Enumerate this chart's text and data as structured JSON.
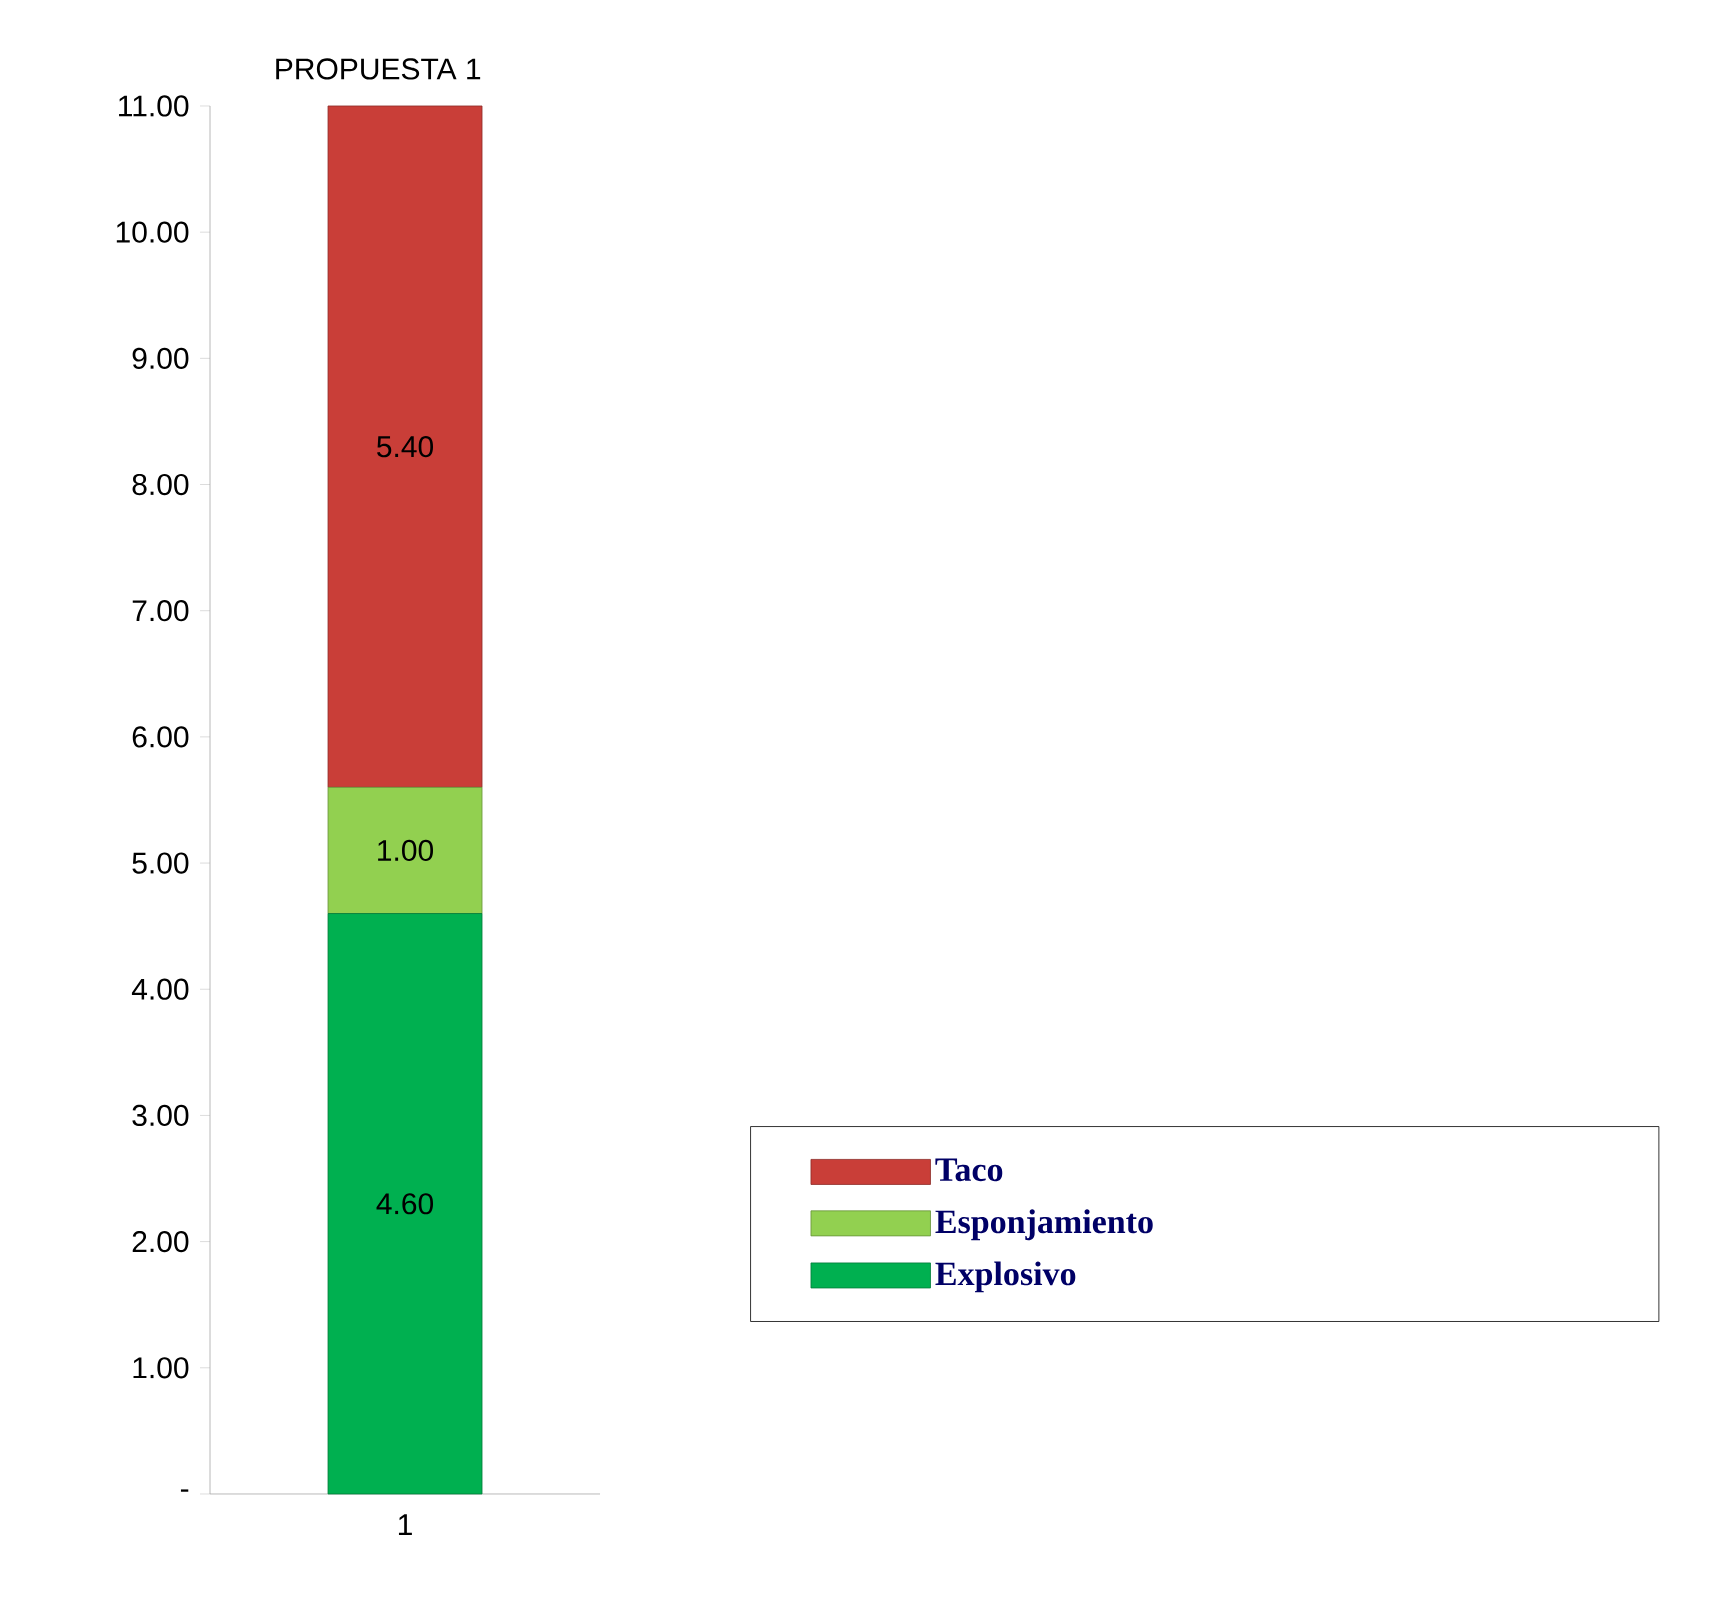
{
  "chart_data": {
    "type": "bar",
    "stacked": true,
    "title": "PROPUESTA 1",
    "categories": [
      "1"
    ],
    "series": [
      {
        "name": "Explosivo",
        "color": "#00b050",
        "values": [
          4.6
        ],
        "value_labels": [
          "4.60"
        ]
      },
      {
        "name": "Esponjamiento",
        "color": "#92d050",
        "values": [
          1.0
        ],
        "value_labels": [
          "1.00"
        ]
      },
      {
        "name": "Taco",
        "color": "#c93e38",
        "values": [
          5.4
        ],
        "value_labels": [
          "5.40"
        ]
      }
    ],
    "ylim": [
      0,
      11
    ],
    "yticks": [
      {
        "value": 0,
        "label": "-"
      },
      {
        "value": 1,
        "label": "1.00"
      },
      {
        "value": 2,
        "label": "2.00"
      },
      {
        "value": 3,
        "label": "3.00"
      },
      {
        "value": 4,
        "label": "4.00"
      },
      {
        "value": 5,
        "label": "5.00"
      },
      {
        "value": 6,
        "label": "6.00"
      },
      {
        "value": 7,
        "label": "7.00"
      },
      {
        "value": 8,
        "label": "8.00"
      },
      {
        "value": 9,
        "label": "9.00"
      },
      {
        "value": 10,
        "label": "10.00"
      },
      {
        "value": 11,
        "label": "11.00"
      }
    ],
    "legend": "bottom right"
  }
}
